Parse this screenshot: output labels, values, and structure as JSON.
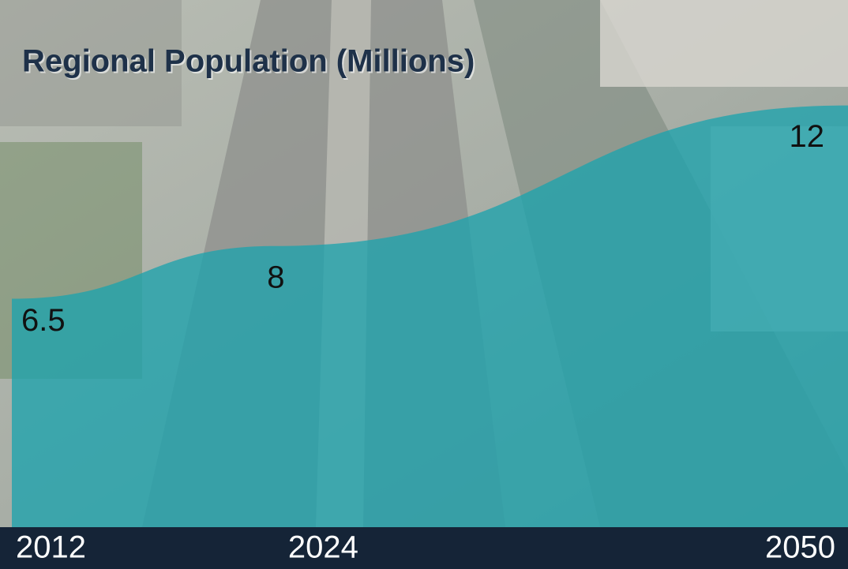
{
  "chart_data": {
    "type": "area",
    "title": "Regional Population (Millions)",
    "x": [
      2012,
      2024,
      2050
    ],
    "values": [
      6.5,
      8,
      12
    ],
    "color": "#1ea3ad",
    "xlim": [
      2012,
      2050
    ],
    "ylim": [
      0,
      15
    ]
  }
}
